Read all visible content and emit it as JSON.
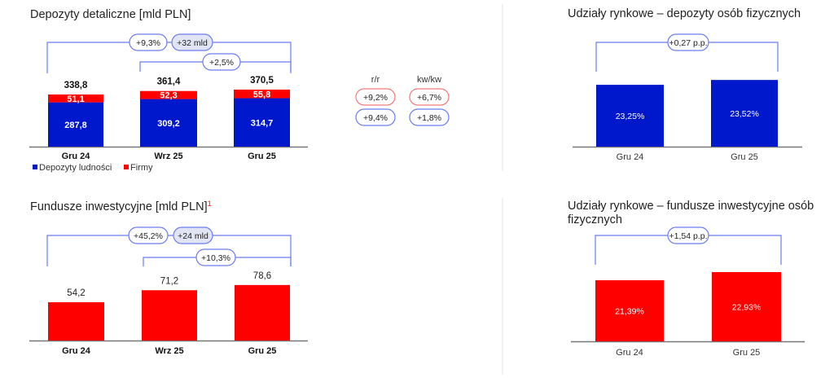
{
  "colors": {
    "blue": "#0018cc",
    "red": "#ff0000",
    "bracket": "#6b7cf0",
    "pill_fill": "#e1e5f3",
    "red_outline": "#f07a7a",
    "axis": "#777777",
    "divider": "#eeeeee"
  },
  "chart_data": [
    {
      "id": "deposits",
      "type": "bar",
      "stacked": true,
      "title": "Depozyty detaliczne [mld PLN]",
      "categories": [
        "Gru 24",
        "Wrz 25",
        "Gru 25"
      ],
      "series": [
        {
          "name": "Depozyty ludności",
          "color": "#0018cc",
          "values": [
            287.8,
            309.2,
            314.7
          ],
          "labels": [
            "287,8",
            "309,2",
            "314,7"
          ]
        },
        {
          "name": "Firmy",
          "color": "#ff0000",
          "values": [
            51.1,
            52.3,
            55.8
          ],
          "labels": [
            "51,1",
            "52,3",
            "55,8"
          ]
        }
      ],
      "totals": [
        338.8,
        361.4,
        370.5
      ],
      "total_labels": [
        "338,8",
        "361,4",
        "370,5"
      ],
      "ylim": [
        0,
        370
      ],
      "legend": "bottom-left",
      "annotations": {
        "gru24_gru25": {
          "pct": "+9,3%",
          "abs": "+32 mld"
        },
        "wrz25_gru25": {
          "pct": "+2,5%"
        }
      },
      "growth_table": {
        "headers": [
          "r/r",
          "kw/kw"
        ],
        "firmy": [
          "+9,2%",
          "+6,7%"
        ],
        "ludnosci": [
          "+9,4%",
          "+1,8%"
        ]
      }
    },
    {
      "id": "funds",
      "type": "bar",
      "title": "Fundusze inwestycyjne [mld PLN]",
      "title_footnote": "1",
      "categories": [
        "Gru 24",
        "Wrz 25",
        "Gru 25"
      ],
      "values": [
        54.2,
        71.2,
        78.6
      ],
      "labels": [
        "54,2",
        "71,2",
        "78,6"
      ],
      "color": "#ff0000",
      "ylim": [
        0,
        80
      ],
      "annotations": {
        "gru24_gru25": {
          "pct": "+45,2%",
          "abs": "+24 mld"
        },
        "wrz25_gru25": {
          "pct": "+10,3%"
        }
      }
    },
    {
      "id": "share_deposits",
      "type": "bar",
      "title": "Udziały rynkowe – depozyty osób fizycznych",
      "categories": [
        "Gru 24",
        "Gru 25"
      ],
      "values": [
        23.25,
        23.52
      ],
      "labels": [
        "23,25%",
        "23,52%"
      ],
      "color": "#0018cc",
      "annotations": {
        "change": "+0,27 p.p."
      }
    },
    {
      "id": "share_funds",
      "type": "bar",
      "title_lines": [
        "Udziały rynkowe – fundusze inwestycyjne osób",
        "fizycznych"
      ],
      "categories": [
        "Gru 24",
        "Gru 25"
      ],
      "values": [
        21.39,
        22.93
      ],
      "labels": [
        "21,39%",
        "22,93%"
      ],
      "color": "#ff0000",
      "annotations": {
        "change": "+1,54 p.p."
      }
    }
  ]
}
